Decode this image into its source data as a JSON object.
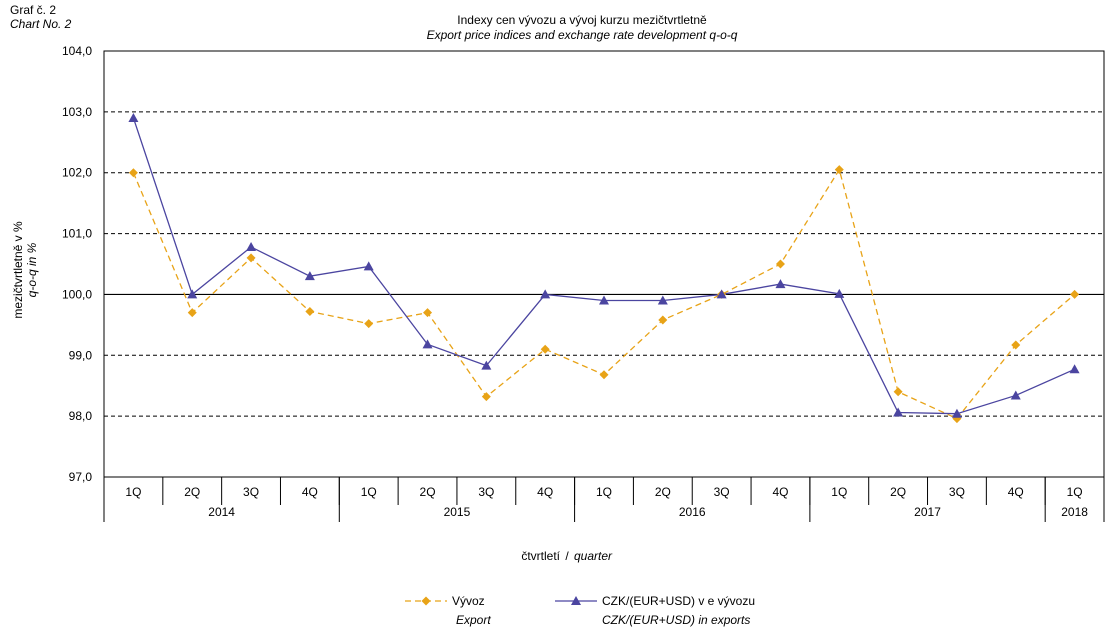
{
  "header": {
    "graph_label_cz": "Graf č. 2",
    "graph_label_en": "Chart No. 2"
  },
  "chart_data": {
    "type": "line",
    "title": "Indexy cen vývozu a vývoj kurzu mezičtvrtletně",
    "subtitle": "Export price indices and exchange rate development q-o-q",
    "ylabel": "mezičtvrtletně v %",
    "ylabel_en": "q-o-q in %",
    "xlabel": "čtvrtletí",
    "xlabel_en": "quarter",
    "xlabel_sep": "/",
    "ylim": [
      97,
      104
    ],
    "ytick_step": 1,
    "ytick_labels": [
      "97,0",
      "98,0",
      "99,0",
      "100,0",
      "101,0",
      "102,0",
      "103,0",
      "104,0"
    ],
    "categories": [
      "1Q",
      "2Q",
      "3Q",
      "4Q",
      "1Q",
      "2Q",
      "3Q",
      "4Q",
      "1Q",
      "2Q",
      "3Q",
      "4Q",
      "1Q",
      "2Q",
      "3Q",
      "4Q",
      "1Q"
    ],
    "year_groups": [
      {
        "label": "2014",
        "count": 4
      },
      {
        "label": "2015",
        "count": 4
      },
      {
        "label": "2016",
        "count": 4
      },
      {
        "label": "2017",
        "count": 4
      },
      {
        "label": "2018",
        "count": 1
      }
    ],
    "grid": "horizontal dashed",
    "legend_position": "bottom",
    "series": [
      {
        "name": "Vývoz",
        "name_en": "Export",
        "color": "#E8A317",
        "line_style": "dashed",
        "marker": "diamond",
        "values": [
          102.0,
          99.7,
          100.6,
          99.72,
          99.52,
          99.7,
          98.32,
          99.1,
          98.68,
          99.58,
          100.0,
          100.5,
          102.05,
          98.4,
          97.96,
          99.17,
          100.0
        ]
      },
      {
        "name": "CZK/(EUR+USD) v e vývozu",
        "name_en": "CZK/(EUR+USD) in exports",
        "color": "#4B45A0",
        "line_style": "solid",
        "marker": "triangle",
        "values": [
          102.9,
          100.0,
          100.78,
          100.3,
          100.46,
          99.18,
          98.83,
          100.0,
          99.9,
          99.9,
          100.0,
          100.17,
          100.01,
          98.06,
          98.04,
          98.34,
          98.77
        ]
      }
    ]
  }
}
